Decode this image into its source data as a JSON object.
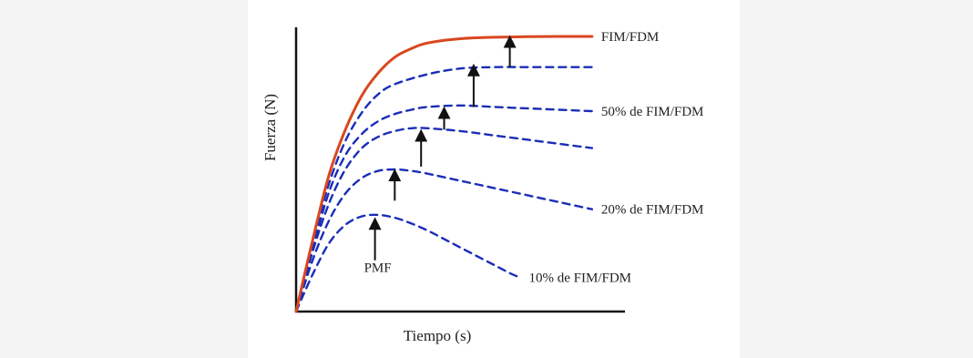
{
  "chart_data": {
    "type": "line",
    "title": "",
    "xlabel": "Tiempo (s)",
    "ylabel": "Fuerza (N)",
    "xlim": [
      0,
      100
    ],
    "ylim": [
      0,
      100
    ],
    "grid": false,
    "series": [
      {
        "name": "FIM/FDM",
        "color": "#d9471f",
        "style": "solid",
        "x": [
          0,
          5,
          10,
          15,
          20,
          25,
          30,
          35,
          40,
          50,
          60,
          70,
          80,
          90
        ],
        "y": [
          0,
          25,
          48,
          64,
          76,
          84,
          89.5,
          92.5,
          94.5,
          96,
          96.5,
          96.7,
          96.8,
          96.8
        ]
      },
      {
        "name": "",
        "color": "#1a2db8",
        "style": "dashed",
        "x": [
          0,
          5,
          10,
          15,
          20,
          25,
          30,
          40,
          50,
          60,
          70,
          80,
          90
        ],
        "y": [
          0,
          24,
          45,
          60,
          70,
          76.5,
          80,
          83.5,
          85.5,
          86,
          86,
          86,
          86
        ]
      },
      {
        "name": "50% de FIM/FDM",
        "color": "#1a2db8",
        "style": "dashed",
        "x": [
          0,
          5,
          10,
          15,
          20,
          25,
          30,
          35,
          40,
          50,
          60,
          70,
          80,
          90
        ],
        "y": [
          0,
          22,
          42,
          55,
          62.5,
          67,
          69.5,
          71,
          72,
          72.5,
          72,
          71.5,
          71,
          70.5
        ]
      },
      {
        "name": "",
        "color": "#1a2db8",
        "style": "dashed",
        "x": [
          0,
          5,
          10,
          15,
          20,
          25,
          30,
          35,
          40,
          50,
          60,
          70,
          80,
          90
        ],
        "y": [
          0,
          21,
          38,
          50,
          57.5,
          61.5,
          63.5,
          64.5,
          64.5,
          63.5,
          62,
          60.5,
          59,
          57.5
        ]
      },
      {
        "name": "20% de FIM/FDM",
        "color": "#1a2db8",
        "style": "dashed",
        "x": [
          0,
          5,
          10,
          15,
          20,
          25,
          30,
          35,
          40,
          50,
          60,
          70,
          80,
          90
        ],
        "y": [
          0,
          18,
          32,
          41.5,
          47,
          49.5,
          50,
          49.5,
          48.5,
          46,
          43.5,
          41,
          38.5,
          36
        ]
      },
      {
        "name": "10% de FIM/FDM",
        "color": "#1a2db8",
        "style": "dashed",
        "x": [
          0,
          5,
          10,
          15,
          20,
          25,
          30,
          35,
          40,
          45,
          50,
          55,
          60,
          65,
          68
        ],
        "y": [
          0,
          13,
          24,
          30.5,
          33.5,
          34,
          33,
          31,
          28.5,
          25.5,
          22.5,
          19.5,
          16.5,
          13.5,
          12
        ]
      }
    ],
    "annotations": [
      {
        "text": "PMF",
        "points_to": {
          "x": 24,
          "y": 33
        }
      }
    ],
    "arrows": [
      {
        "x": 24,
        "y_from": 18,
        "y_to": 31
      },
      {
        "x": 30,
        "y_from": 39,
        "y_to": 48
      },
      {
        "x": 38,
        "y_from": 51,
        "y_to": 62
      },
      {
        "x": 45,
        "y_from": 64,
        "y_to": 70
      },
      {
        "x": 54,
        "y_from": 72,
        "y_to": 85
      },
      {
        "x": 65,
        "y_from": 86,
        "y_to": 95
      }
    ]
  }
}
